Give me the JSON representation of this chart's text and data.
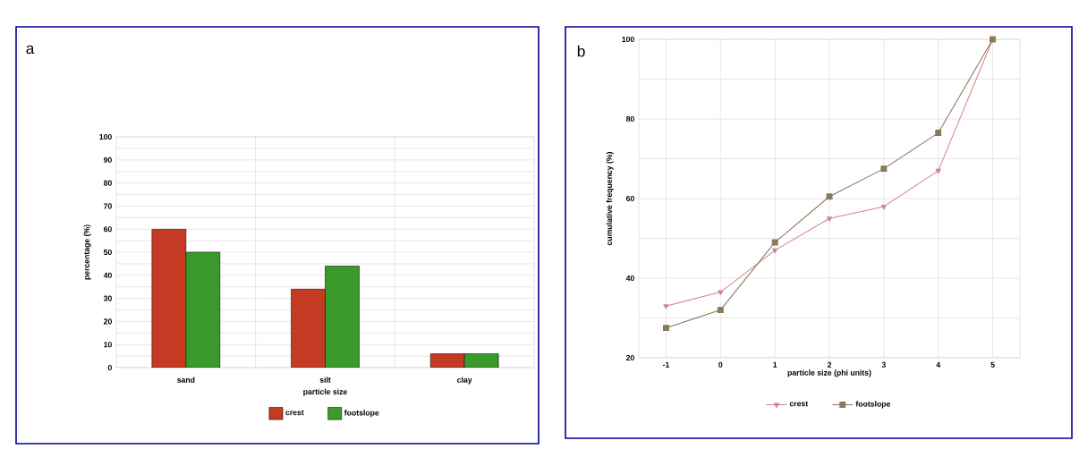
{
  "chart_data": [
    {
      "type": "bar",
      "title": "a",
      "categories": [
        "sand",
        "silt",
        "clay"
      ],
      "xlabel": "particle size",
      "ylabel": "percentage (%)",
      "series": [
        {
          "name": "crest",
          "color": "#c43a22",
          "values": [
            60,
            34,
            6
          ]
        },
        {
          "name": "footslope",
          "color": "#3a9a2a",
          "values": [
            50,
            44,
            6
          ]
        }
      ],
      "ylim": [
        0,
        100
      ],
      "yticks": [
        0,
        10,
        20,
        30,
        40,
        50,
        60,
        70,
        80,
        90,
        100
      ],
      "grid": true,
      "legend": "bottom"
    },
    {
      "type": "line",
      "title": "b",
      "x": [
        -1,
        0,
        1,
        2,
        3,
        4,
        5
      ],
      "xlabel": "particle size (phi units)",
      "ylabel": "cumulative frequency (%)",
      "series": [
        {
          "name": "crest",
          "color": "#d8809a",
          "marker": "triangle",
          "values": [
            33,
            36.5,
            47,
            55,
            58,
            67,
            100
          ]
        },
        {
          "name": "footslope",
          "color": "#8a7a5a",
          "marker": "square",
          "values": [
            27.5,
            32,
            49,
            60.5,
            67.5,
            76.5,
            100
          ]
        }
      ],
      "xlim": [
        -1.5,
        5.5
      ],
      "xticks": [
        -1,
        0,
        1,
        2,
        3,
        4,
        5
      ],
      "ylim": [
        20,
        100
      ],
      "yticks": [
        20,
        40,
        60,
        80,
        100
      ],
      "grid": true,
      "legend": "bottom"
    }
  ]
}
